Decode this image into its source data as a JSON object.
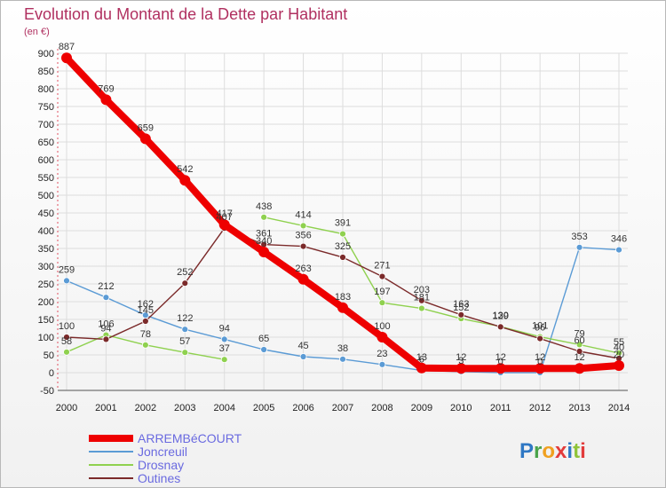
{
  "chart_data": {
    "type": "line",
    "title": "Evolution du Montant de la Dette par Habitant",
    "subtitle": "(en €)",
    "xlabel": "",
    "ylabel": "",
    "ylim": [
      -50,
      900
    ],
    "yticks": [
      "-50",
      "0",
      "50",
      "100",
      "150",
      "200",
      "250",
      "300",
      "350",
      "400",
      "450",
      "500",
      "550",
      "600",
      "650",
      "700",
      "750",
      "800",
      "850",
      "900"
    ],
    "categories": [
      "2000",
      "2001",
      "2002",
      "2003",
      "2004",
      "2005",
      "2006",
      "2007",
      "2008",
      "2009",
      "2010",
      "2011",
      "2012",
      "2013",
      "2014"
    ],
    "series": [
      {
        "name": "ARREMBéCOURT",
        "color": "#ee0000",
        "values": [
          887,
          769,
          659,
          542,
          417,
          340,
          263,
          183,
          100,
          13,
          12,
          12,
          12,
          12,
          20
        ],
        "labels": [
          "887",
          "769",
          "659",
          "542",
          "417",
          "340",
          "263",
          "183",
          "100",
          "13",
          "12",
          "12",
          "12",
          "12",
          "20"
        ]
      },
      {
        "name": "Joncreuil",
        "color": "#5b9bd5",
        "values": [
          259,
          212,
          162,
          122,
          94,
          65,
          45,
          38,
          23,
          6,
          3,
          0,
          0,
          353,
          346
        ],
        "labels": [
          "259",
          "212",
          "162",
          "122",
          "94",
          "65",
          "45",
          "38",
          "23",
          "6",
          "3",
          "0",
          "0",
          "353",
          "346"
        ]
      },
      {
        "name": "Drosnay",
        "color": "#8fd14f",
        "values": [
          58,
          106,
          78,
          57,
          37,
          438,
          414,
          391,
          197,
          181,
          152,
          130,
          101,
          79,
          55
        ],
        "labels": [
          "58",
          "106",
          "78",
          "57",
          "37",
          "438",
          "414",
          "391",
          "197",
          "181",
          "152",
          "130",
          "101",
          "79",
          "55"
        ]
      },
      {
        "name": "Outines",
        "color": "#7b2a2a",
        "values": [
          100,
          94,
          145,
          252,
          407,
          361,
          356,
          325,
          271,
          203,
          163,
          129,
          96,
          60,
          40
        ],
        "labels": [
          "100",
          "94",
          "145",
          "252",
          "407",
          "361",
          "356",
          "325",
          "271",
          "203",
          "163",
          "129",
          "96",
          "60",
          "40"
        ]
      }
    ]
  },
  "branding": {
    "logo_text": "Proxiti"
  }
}
